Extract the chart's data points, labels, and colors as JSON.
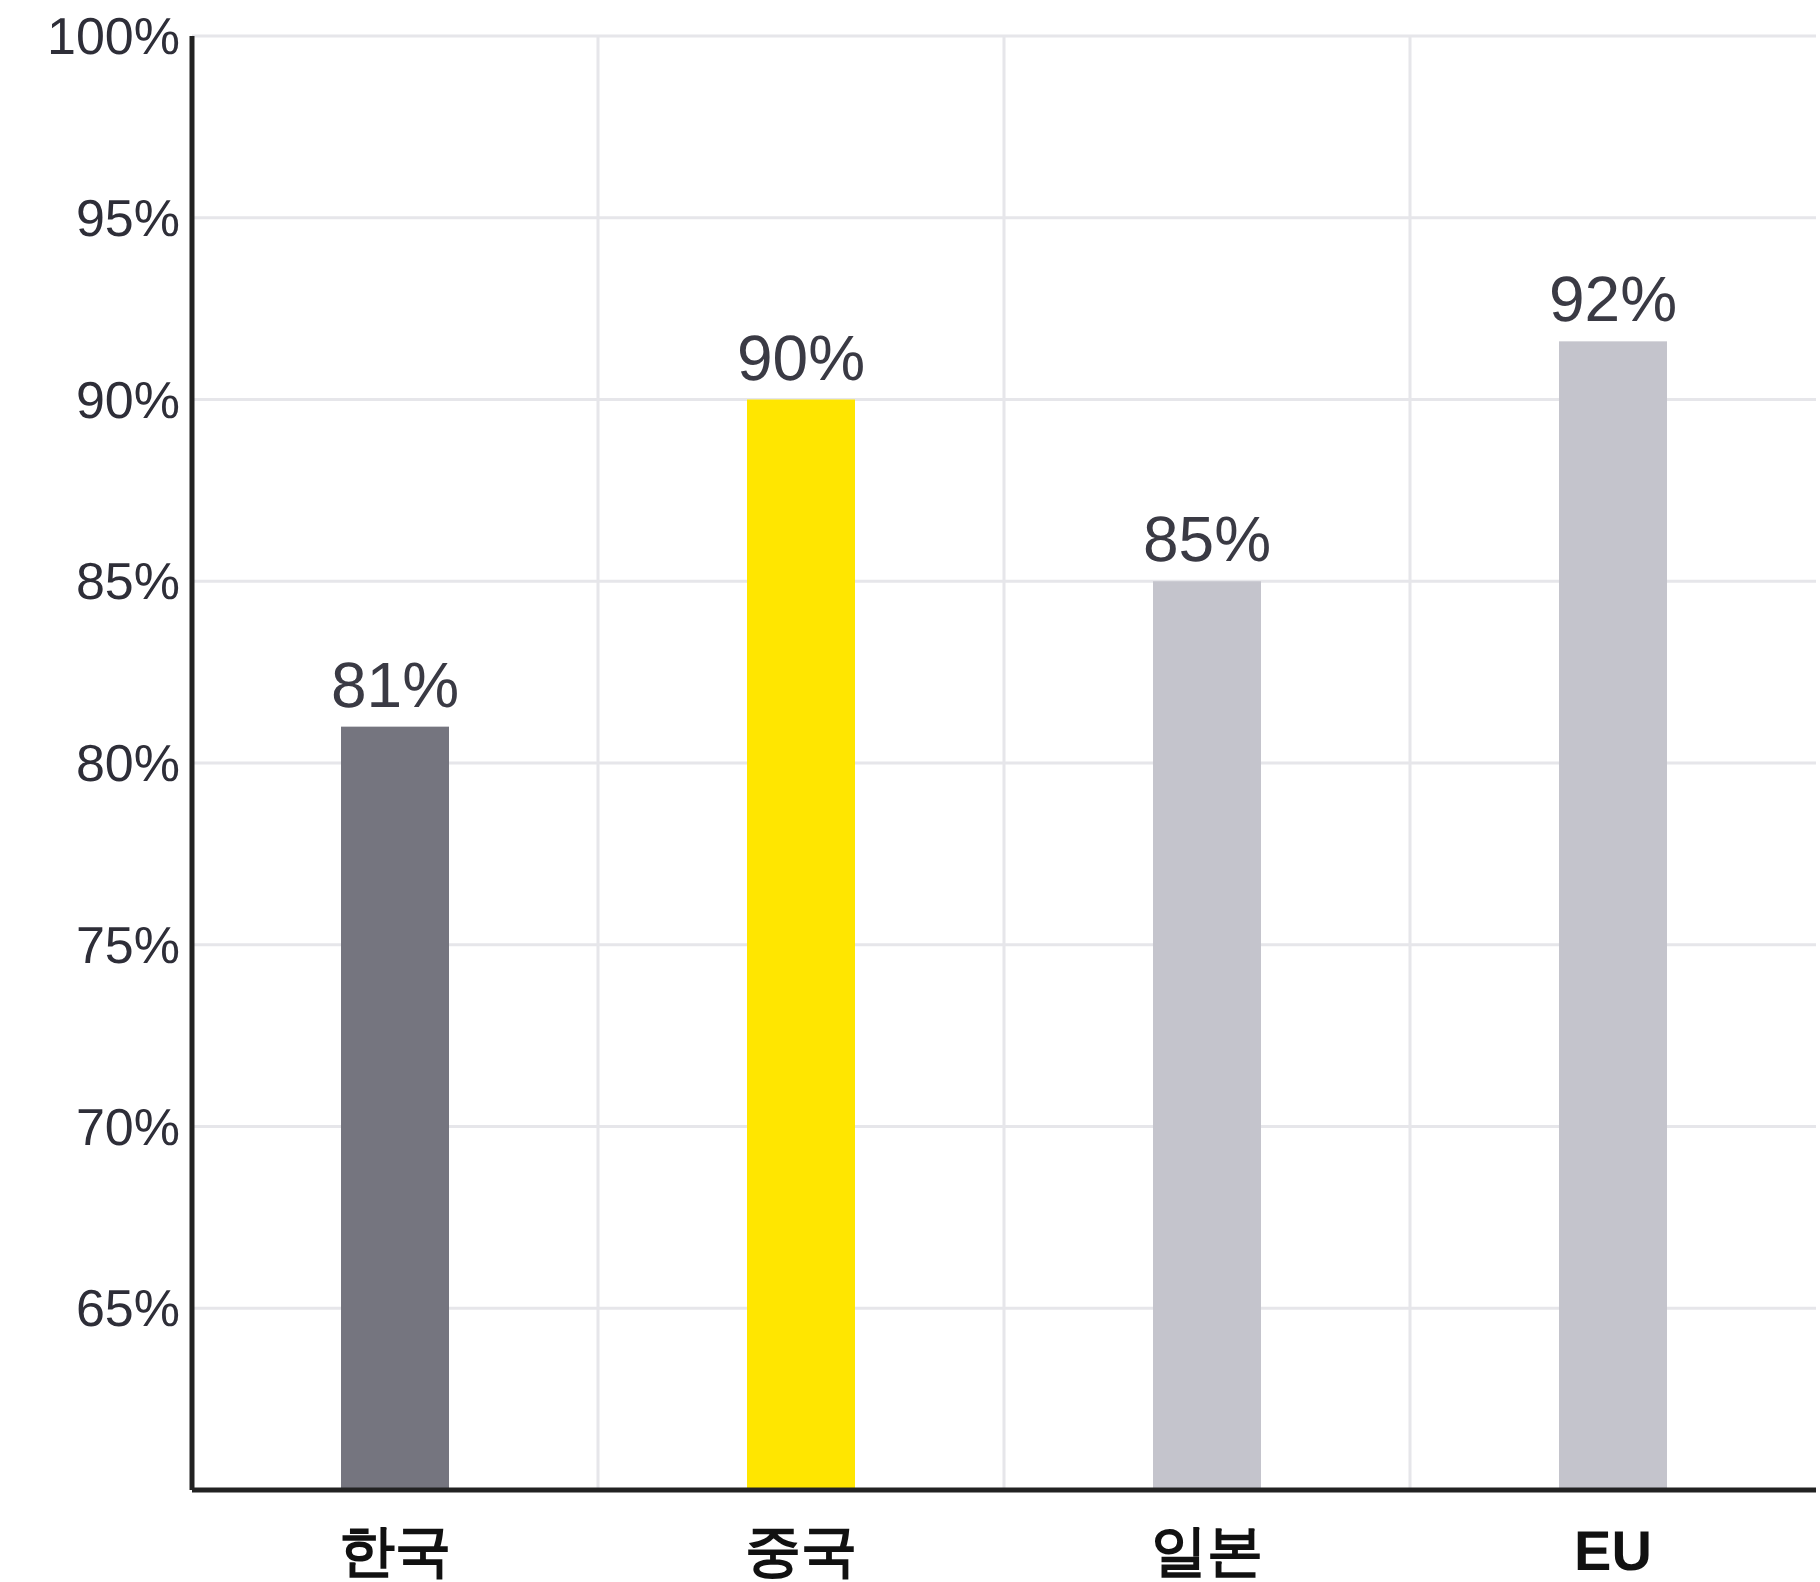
{
  "chart_data": {
    "type": "bar",
    "categories": [
      "한국",
      "중국",
      "일본",
      "EU"
    ],
    "values": [
      81,
      90,
      85,
      91.6
    ],
    "colors": [
      "#75757f",
      "#ffe600",
      "#c4c4cc",
      "#c4c4cc"
    ],
    "value_labels": [
      "81%",
      "90%",
      "85%",
      "92%"
    ],
    "ylim": [
      60,
      100
    ],
    "yticks": [
      {
        "value": 65,
        "label": "65%"
      },
      {
        "value": 70,
        "label": "70%"
      },
      {
        "value": 75,
        "label": "75%"
      },
      {
        "value": 80,
        "label": "80%"
      },
      {
        "value": 85,
        "label": "85%"
      },
      {
        "value": 90,
        "label": "90%"
      },
      {
        "value": 95,
        "label": "95%"
      },
      {
        "value": 100,
        "label": "100%"
      }
    ],
    "grid": true
  }
}
